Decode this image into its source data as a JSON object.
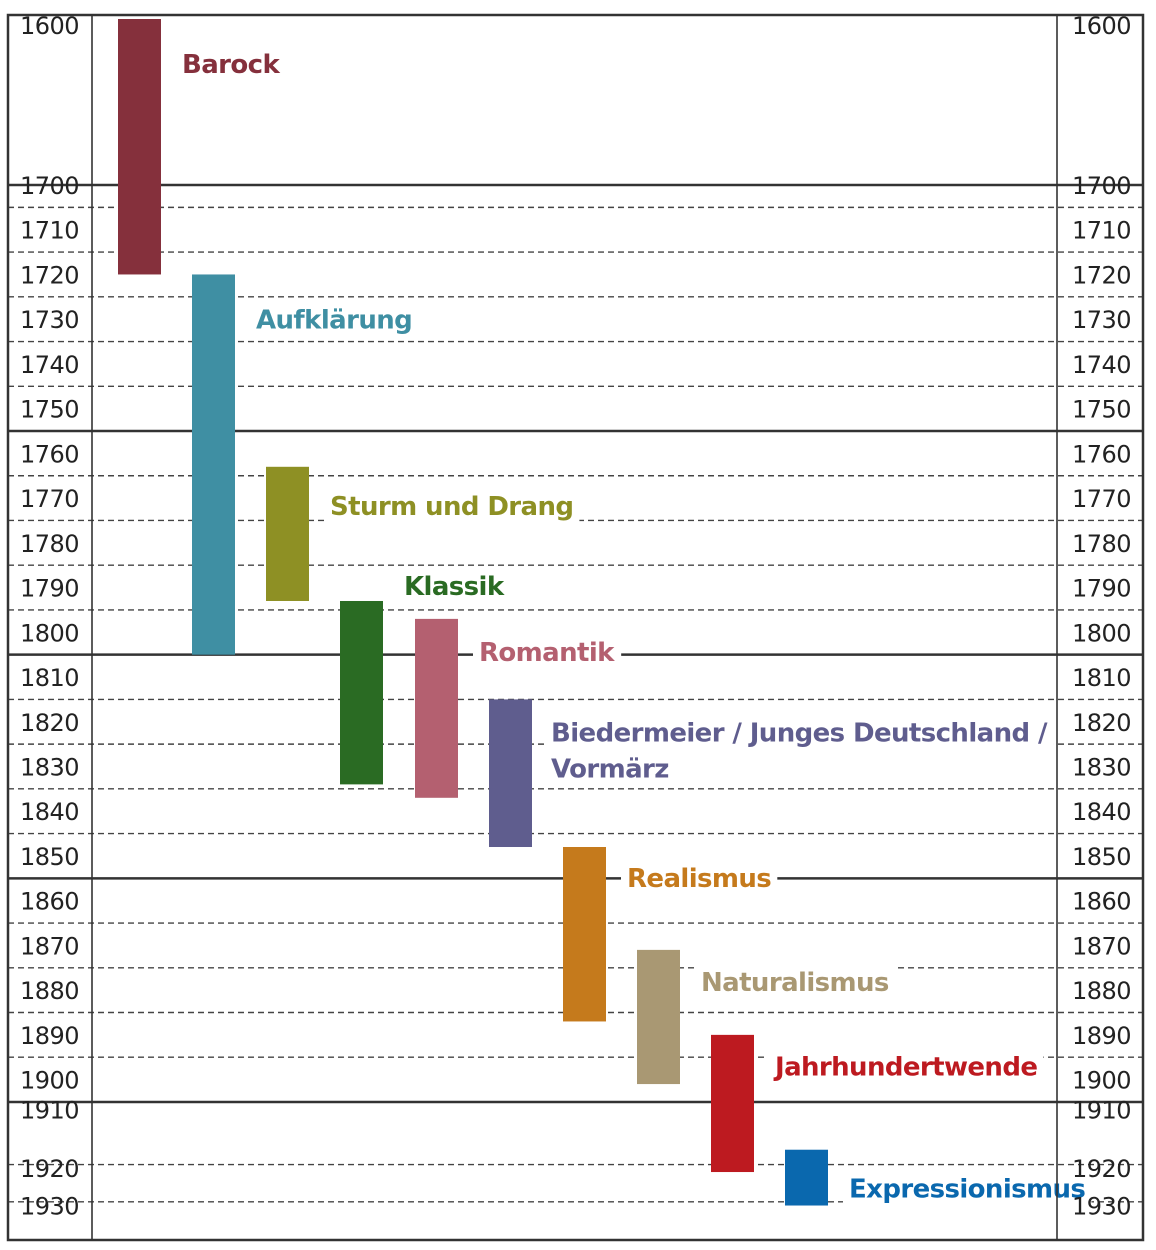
{
  "chart_data": {
    "type": "bar",
    "orientation": "vertical-timeline",
    "title": "",
    "y_ticks": [
      1600,
      1700,
      1710,
      1720,
      1730,
      1740,
      1750,
      1760,
      1770,
      1780,
      1790,
      1800,
      1810,
      1820,
      1830,
      1840,
      1850,
      1860,
      1870,
      1880,
      1890,
      1900,
      1910,
      1920,
      1930
    ],
    "major_lines": [
      1700,
      1755,
      1805,
      1855,
      1905
    ],
    "minor_lines": [
      1705,
      1715,
      1725,
      1735,
      1745,
      1765,
      1775,
      1785,
      1795,
      1815,
      1825,
      1835,
      1845,
      1865,
      1875,
      1885,
      1895,
      1915,
      1925
    ],
    "ylim": [
      1597,
      1933
    ],
    "grid": true,
    "epochs": [
      {
        "name": "Barock",
        "start": 1600,
        "end": 1720,
        "color": "#85303c"
      },
      {
        "name": "Aufklärung",
        "start": 1720,
        "end": 1805,
        "color": "#3f8fa3"
      },
      {
        "name": "Sturm und Drang",
        "start": 1763,
        "end": 1793,
        "color": "#8e9024"
      },
      {
        "name": "Klassik",
        "start": 1793,
        "end": 1834,
        "color": "#2a6b23"
      },
      {
        "name": "Romantik",
        "start": 1797,
        "end": 1837,
        "color": "#b46070"
      },
      {
        "name": "Biedermeier / Junges Deutschland / Vormärz",
        "name_lines": [
          "Biedermeier / Junges Deutschland /",
          "Vormärz"
        ],
        "start": 1815,
        "end": 1848,
        "color": "#5f5d8e"
      },
      {
        "name": "Realismus",
        "start": 1848,
        "end": 1887,
        "color": "#c57a1c"
      },
      {
        "name": "Naturalismus",
        "start": 1871,
        "end": 1901,
        "color": "#a99873"
      },
      {
        "name": "Jahrhundertwende",
        "start": 1890,
        "end": 1917,
        "color": "#bd1a20"
      },
      {
        "name": "Expressionismus",
        "start": 1911,
        "end": 1926,
        "color": "#0a68ae"
      }
    ]
  }
}
